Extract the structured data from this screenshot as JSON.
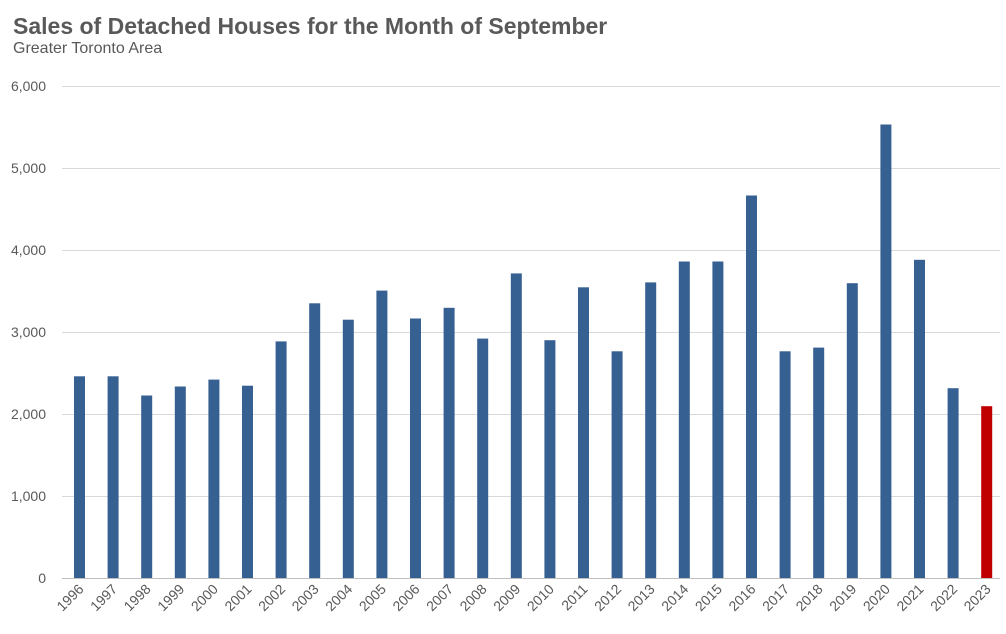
{
  "chart_data": {
    "type": "bar",
    "title": "Sales of Detached Houses for the Month of September",
    "subtitle": "Greater Toronto Area",
    "xlabel": "",
    "ylabel": "",
    "ylim": [
      0,
      6000
    ],
    "yticks": [
      0,
      1000,
      2000,
      3000,
      4000,
      5000,
      6000
    ],
    "ytick_labels": [
      "0",
      "1,000",
      "2,000",
      "3,000",
      "4,000",
      "5,000",
      "6,000"
    ],
    "grid": true,
    "legend": "none",
    "categories": [
      "1996",
      "1997",
      "1998",
      "1999",
      "2000",
      "2001",
      "2002",
      "2003",
      "2004",
      "2005",
      "2006",
      "2007",
      "2008",
      "2009",
      "2010",
      "2011",
      "2012",
      "2013",
      "2014",
      "2015",
      "2016",
      "2017",
      "2018",
      "2019",
      "2020",
      "2021",
      "2022",
      "2023"
    ],
    "values": [
      2460,
      2460,
      2225,
      2335,
      2420,
      2345,
      2885,
      3350,
      3150,
      3505,
      3165,
      3295,
      2920,
      3715,
      2900,
      3545,
      2765,
      3605,
      3860,
      3860,
      4665,
      2765,
      2810,
      3595,
      5530,
      3880,
      2315,
      2095
    ],
    "colors": {
      "default": "#376092",
      "highlight": "#C00000"
    },
    "highlight_index": 27
  }
}
